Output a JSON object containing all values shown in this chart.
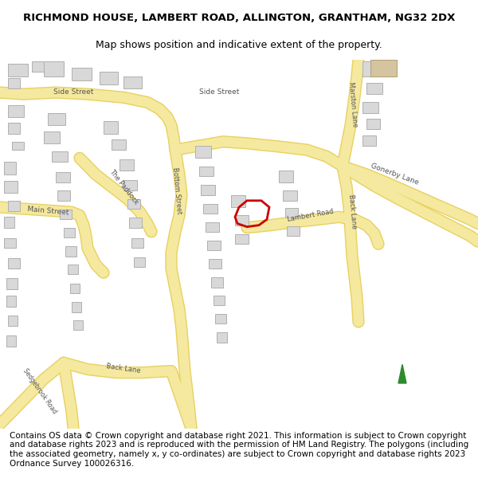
{
  "title_line1": "RICHMOND HOUSE, LAMBERT ROAD, ALLINGTON, GRANTHAM, NG32 2DX",
  "title_line2": "Map shows position and indicative extent of the property.",
  "footer_text": "Contains OS data © Crown copyright and database right 2021. This information is subject to Crown copyright and database rights 2023 and is reproduced with the permission of HM Land Registry. The polygons (including the associated geometry, namely x, y co-ordinates) are subject to Crown copyright and database rights 2023 Ordnance Survey 100026316.",
  "bg_color": "#ffffff",
  "map_bg": "#f5f4f0",
  "road_color_major": "#f5e9a0",
  "road_border_color": "#e8d060",
  "building_color": "#d8d8d8",
  "building_edge": "#b0b0b0",
  "road_label_color": "#555555",
  "plot_outline_color": "#cc0000",
  "north_arrow_color": "#2d8a2d",
  "title_fontsize": 9.5,
  "footer_fontsize": 7.5
}
